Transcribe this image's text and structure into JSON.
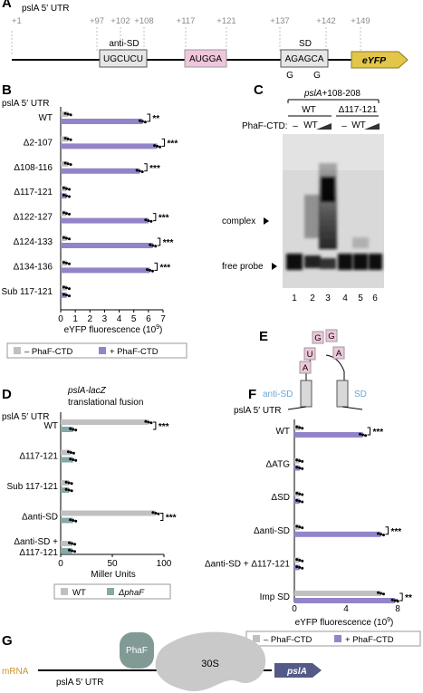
{
  "colors": {
    "minus": "#c0c0c0",
    "plus": "#9384c9",
    "wt_bar": "#c0c0c0",
    "phaf_bar": "#86a8a6",
    "anti_sd": "#6aa7d8",
    "sd": "#6aa7d8",
    "pos_gray": "#8a8a8a",
    "pink_box": "#efc6dc",
    "eyfp": "#e2c64a",
    "psla_arrow": "#545a88",
    "phaf_blob": "#819a96",
    "ribosome": "#c9c9c9",
    "mrna": "#c8962c"
  },
  "panelA": {
    "label": "A",
    "title": "pslA 5′ UTR",
    "positions": [
      "+1",
      "+97",
      "+102",
      "+108",
      "+117",
      "+121",
      "+137",
      "+142",
      "+149"
    ],
    "anti_sd_label": "anti-SD",
    "sd_label": "SD",
    "box1": "UGCUCU",
    "box2": "AUGGA",
    "box3": "AGAGCA",
    "mut1": "G",
    "mut2": "G",
    "eyfp": "eYFP"
  },
  "panelB": {
    "label": "B",
    "title": "pslA 5′ UTR",
    "xlabel": "eYFP fluorescence (10",
    "xlabel_sup": "9",
    "xlabel_close": ")",
    "legend_minus": "– PhaF-CTD",
    "legend_plus": "+ PhaF-CTD",
    "chart_data": {
      "type": "bar",
      "categories": [
        "WT",
        "Δ2-107",
        "Δ108-116",
        "Δ117-121",
        "Δ122-127",
        "Δ124-133",
        "Δ134-136",
        "Sub 117-121"
      ],
      "series": [
        {
          "name": "– PhaF-CTD",
          "values": [
            0.5,
            0.5,
            0.5,
            0.4,
            0.4,
            0.4,
            0.4,
            0.4
          ]
        },
        {
          "name": "+ PhaF-CTD",
          "values": [
            5.6,
            6.6,
            5.4,
            0.4,
            6.0,
            6.3,
            6.1,
            0.4
          ]
        }
      ],
      "xlim": [
        0,
        7
      ],
      "ticks": [
        "0",
        "1",
        "2",
        "3",
        "4",
        "5",
        "6",
        "7"
      ],
      "significance": [
        "**",
        "***",
        "***",
        "",
        "***",
        "***",
        "***",
        ""
      ]
    }
  },
  "panelC": {
    "label": "C",
    "title": "pslA+108-208",
    "group1": "WT",
    "group2": "Δ117-121",
    "phaf_label": "PhaF-CTD:",
    "dash": "–",
    "wt": "WT",
    "complex": "complex",
    "free_probe": "free probe",
    "lanes": [
      "1",
      "2",
      "3",
      "4",
      "5",
      "6"
    ]
  },
  "panelD": {
    "label": "D",
    "title": "pslA-lacZ",
    "subtitle": "translational fusion",
    "utr": "pslA 5′ UTR",
    "xlabel": "Miller Units",
    "legend_wt": "WT",
    "legend_phaf": "ΔphaF",
    "chart_data": {
      "type": "bar",
      "categories": [
        "WT",
        "Δ117-121",
        "Sub 117-121",
        "Δanti-SD",
        "Δanti-SD + Δ117-121"
      ],
      "series": [
        {
          "name": "WT",
          "values": [
            85,
            10,
            8,
            92,
            11
          ]
        },
        {
          "name": "ΔphaF",
          "values": [
            12,
            12,
            8,
            12,
            11
          ]
        }
      ],
      "xlim": [
        0,
        100
      ],
      "ticks": [
        "0",
        "50",
        "100"
      ],
      "significance": [
        "***",
        "",
        "",
        "***",
        ""
      ]
    }
  },
  "panelE": {
    "label": "E",
    "loop": [
      "U",
      "G",
      "G",
      "A",
      "A"
    ],
    "anti_sd": "anti-SD",
    "sd": "SD"
  },
  "panelF": {
    "label": "F",
    "title": "pslA 5′ UTR",
    "xlabel": "eYFP fluorescence (10",
    "xlabel_sup": "9",
    "xlabel_close": ")",
    "legend_minus": "– PhaF-CTD",
    "legend_plus": "+ PhaF-CTD",
    "chart_data": {
      "type": "bar",
      "categories": [
        "WT",
        "ΔATG",
        "ΔSD",
        "Δanti-SD",
        "Δanti-SD + Δ117-121",
        "Imp SD"
      ],
      "series": [
        {
          "name": "– PhaF-CTD",
          "values": [
            0.4,
            0.4,
            0.4,
            0.4,
            0.4,
            6.7
          ]
        },
        {
          "name": "+ PhaF-CTD",
          "values": [
            5.3,
            0.4,
            0.4,
            6.7,
            0.4,
            7.8
          ]
        }
      ],
      "xlim": [
        0,
        8
      ],
      "ticks": [
        "0",
        "4",
        "8"
      ],
      "significance": [
        "***",
        "",
        "",
        "***",
        "",
        "**"
      ]
    }
  },
  "panelG": {
    "label": "G",
    "mrna": "mRNA",
    "utr": "pslA 5′ UTR",
    "phaf": "PhaF",
    "ribosome": "30S",
    "gene": "pslA"
  }
}
